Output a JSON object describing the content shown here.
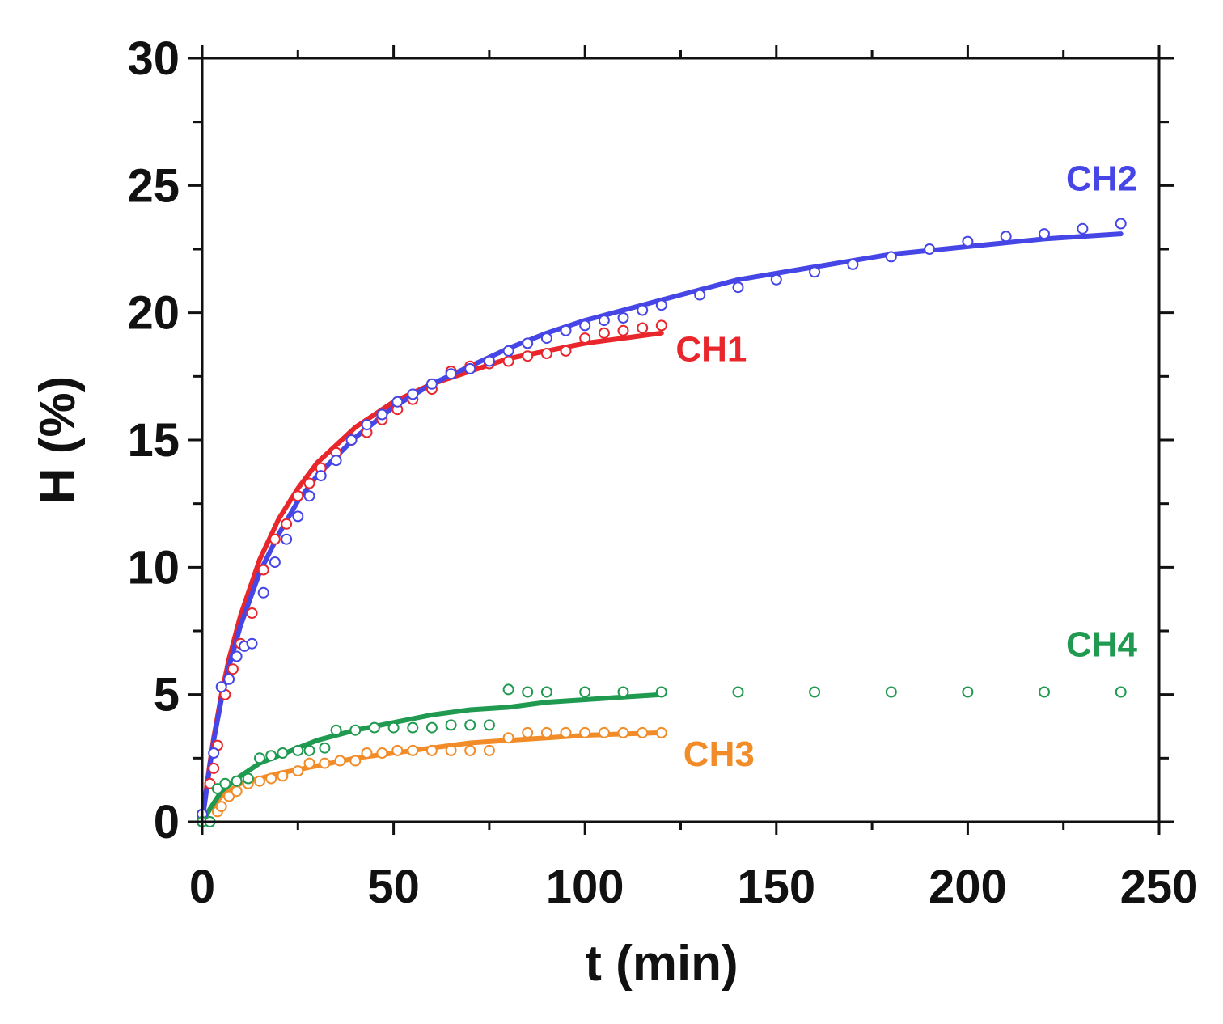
{
  "chart_data": {
    "type": "scatter",
    "title": "",
    "xlabel": "t (min)",
    "ylabel": "H (%)",
    "xlim": [
      0,
      250
    ],
    "ylim": [
      0,
      30
    ],
    "xticks": [
      0,
      50,
      100,
      150,
      200,
      250
    ],
    "yticks": [
      0,
      5,
      10,
      15,
      20,
      25,
      30
    ],
    "grid": false,
    "series": [
      {
        "name": "CH1",
        "color": "#e8262b",
        "marker": "open-circle",
        "x": [
          0,
          2,
          3,
          4,
          6,
          8,
          10,
          13,
          16,
          19,
          22,
          25,
          28,
          31,
          35,
          39,
          43,
          47,
          51,
          55,
          60,
          65,
          70,
          75,
          80,
          85,
          90,
          95,
          100,
          105,
          110,
          115,
          120
        ],
        "values": [
          0.2,
          1.5,
          2.1,
          3.0,
          5.0,
          6.0,
          7.0,
          8.2,
          9.9,
          11.1,
          11.7,
          12.8,
          13.3,
          13.9,
          14.5,
          15.0,
          15.3,
          15.8,
          16.2,
          16.6,
          17.0,
          17.7,
          17.9,
          18.0,
          18.1,
          18.3,
          18.4,
          18.5,
          19.0,
          19.2,
          19.3,
          19.4,
          19.5
        ],
        "fit_x": [
          0,
          1,
          2,
          3,
          5,
          7,
          10,
          15,
          20,
          25,
          30,
          40,
          50,
          60,
          70,
          80,
          90,
          100,
          110,
          120
        ],
        "fit_values": [
          0.0,
          1.2,
          2.3,
          3.3,
          5.0,
          6.4,
          8.1,
          10.3,
          11.9,
          13.1,
          14.1,
          15.5,
          16.5,
          17.2,
          17.7,
          18.2,
          18.5,
          18.8,
          19.0,
          19.2
        ]
      },
      {
        "name": "CH2",
        "color": "#4646e6",
        "marker": "open-circle",
        "x": [
          0,
          3,
          5,
          7,
          9,
          11,
          13,
          16,
          19,
          22,
          25,
          28,
          31,
          35,
          39,
          43,
          47,
          51,
          55,
          60,
          65,
          70,
          75,
          80,
          85,
          90,
          95,
          100,
          105,
          110,
          115,
          120,
          130,
          140,
          150,
          160,
          170,
          180,
          190,
          200,
          210,
          220,
          230,
          240
        ],
        "values": [
          0.3,
          2.7,
          5.3,
          5.6,
          6.5,
          6.9,
          7.0,
          9.0,
          10.2,
          11.1,
          12.0,
          12.8,
          13.6,
          14.2,
          15.0,
          15.6,
          16.0,
          16.5,
          16.8,
          17.2,
          17.6,
          17.8,
          18.1,
          18.5,
          18.8,
          19.0,
          19.3,
          19.5,
          19.7,
          19.8,
          20.1,
          20.3,
          20.7,
          21.0,
          21.3,
          21.6,
          21.9,
          22.2,
          22.5,
          22.8,
          23.0,
          23.1,
          23.3,
          23.5
        ],
        "fit_x": [
          0,
          1,
          2,
          3,
          5,
          7,
          10,
          15,
          20,
          25,
          30,
          40,
          50,
          60,
          70,
          80,
          90,
          100,
          120,
          140,
          160,
          180,
          200,
          220,
          240
        ],
        "fit_values": [
          0.0,
          1.1,
          2.2,
          3.2,
          4.8,
          6.1,
          7.7,
          9.8,
          11.3,
          12.6,
          13.6,
          15.1,
          16.3,
          17.2,
          17.9,
          18.6,
          19.2,
          19.7,
          20.5,
          21.3,
          21.8,
          22.3,
          22.6,
          22.9,
          23.1
        ]
      },
      {
        "name": "CH3",
        "color": "#f28c28",
        "marker": "open-circle",
        "x": [
          0,
          4,
          5,
          7,
          9,
          12,
          15,
          18,
          21,
          25,
          28,
          32,
          36,
          40,
          43,
          47,
          51,
          55,
          60,
          65,
          70,
          75,
          80,
          85,
          90,
          95,
          100,
          105,
          110,
          115,
          120
        ],
        "values": [
          0.0,
          0.4,
          0.6,
          1.0,
          1.2,
          1.5,
          1.6,
          1.7,
          1.8,
          2.0,
          2.3,
          2.3,
          2.4,
          2.4,
          2.7,
          2.7,
          2.8,
          2.8,
          2.8,
          2.8,
          2.8,
          2.8,
          3.3,
          3.5,
          3.5,
          3.5,
          3.5,
          3.5,
          3.5,
          3.5,
          3.5
        ],
        "fit_x": [
          0,
          2,
          5,
          10,
          15,
          20,
          30,
          40,
          50,
          60,
          70,
          80,
          90,
          100,
          110,
          120
        ],
        "fit_values": [
          0.0,
          0.5,
          1.0,
          1.5,
          1.7,
          1.9,
          2.2,
          2.5,
          2.7,
          2.9,
          3.1,
          3.2,
          3.3,
          3.4,
          3.45,
          3.5
        ]
      },
      {
        "name": "CH4",
        "color": "#1f9a50",
        "marker": "open-circle",
        "x": [
          0,
          2,
          4,
          6,
          9,
          12,
          15,
          18,
          21,
          25,
          28,
          32,
          35,
          40,
          45,
          50,
          55,
          60,
          65,
          70,
          75,
          80,
          85,
          90,
          100,
          110,
          120,
          140,
          160,
          180,
          200,
          220,
          240
        ],
        "values": [
          0.0,
          0.0,
          1.3,
          1.5,
          1.6,
          1.7,
          2.5,
          2.6,
          2.7,
          2.8,
          2.8,
          2.9,
          3.6,
          3.6,
          3.7,
          3.7,
          3.7,
          3.7,
          3.8,
          3.8,
          3.8,
          5.2,
          5.1,
          5.1,
          5.1,
          5.1,
          5.1,
          5.1,
          5.1,
          5.1,
          5.1,
          5.1,
          5.1
        ],
        "fit_x": [
          0,
          2,
          5,
          10,
          15,
          20,
          30,
          40,
          50,
          60,
          70,
          80,
          90,
          100,
          110,
          120
        ],
        "fit_values": [
          0.0,
          0.5,
          1.2,
          1.8,
          2.3,
          2.6,
          3.2,
          3.6,
          3.9,
          4.2,
          4.4,
          4.5,
          4.7,
          4.8,
          4.9,
          5.0
        ]
      }
    ],
    "annotations": [
      {
        "text": "CH2",
        "series": "CH2",
        "x": 235,
        "y": 24.8
      },
      {
        "text": "CH1",
        "series": "CH1",
        "x": 133,
        "y": 18.1
      },
      {
        "text": "CH4",
        "series": "CH4",
        "x": 235,
        "y": 6.5
      },
      {
        "text": "CH3",
        "series": "CH3",
        "x": 135,
        "y": 2.2
      }
    ]
  }
}
